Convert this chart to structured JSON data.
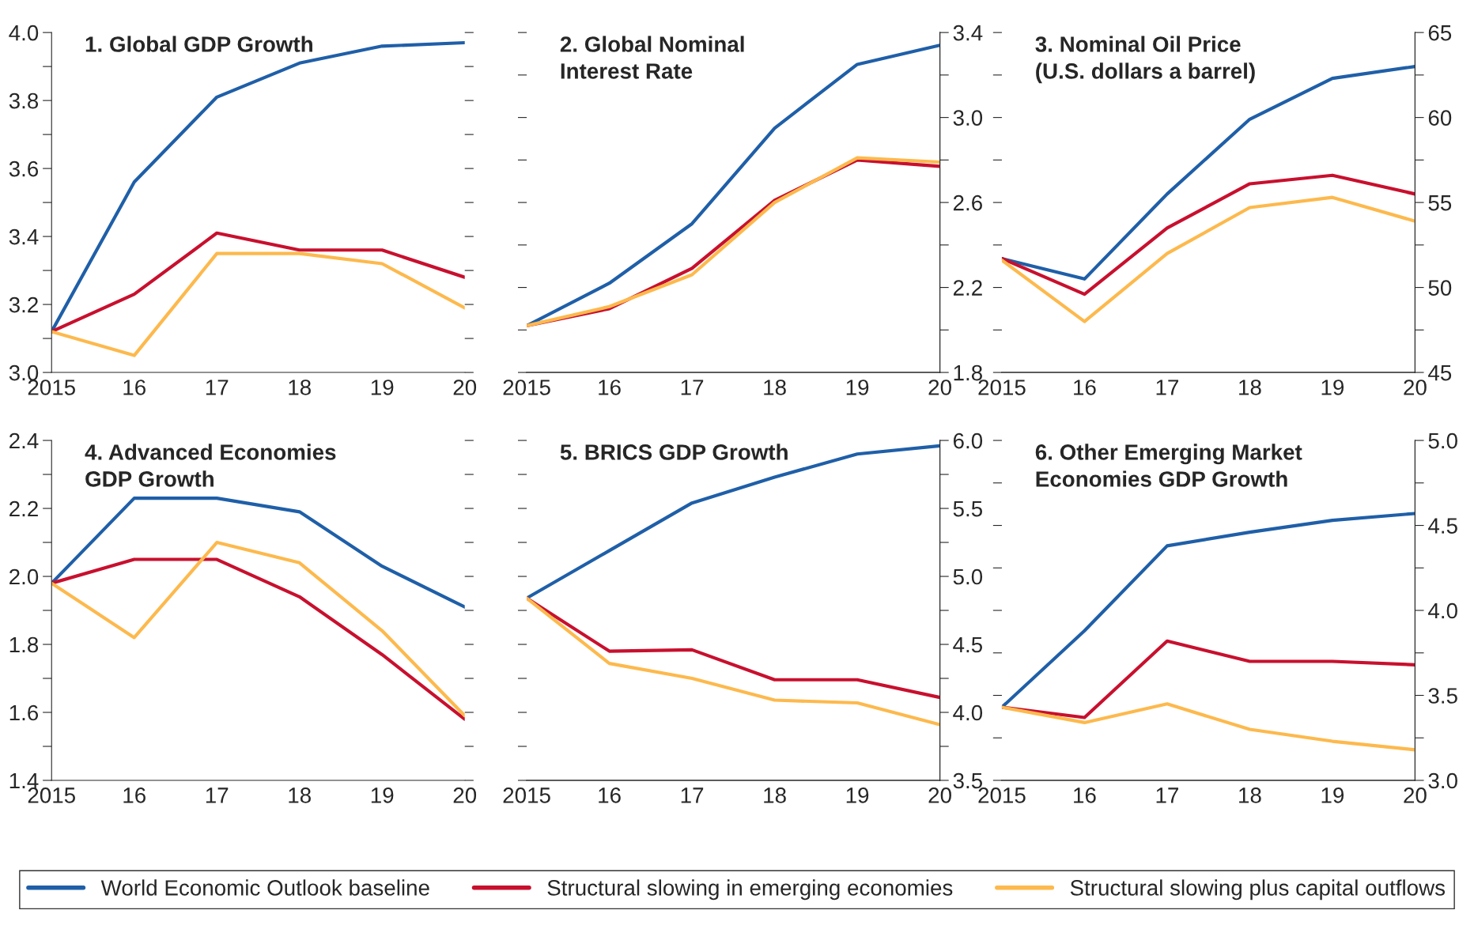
{
  "chart_data": [
    {
      "type": "line",
      "title": "1. Global GDP Growth",
      "categories": [
        "2015",
        "16",
        "17",
        "18",
        "19",
        "20"
      ],
      "ylim": [
        3.0,
        4.0
      ],
      "yticks": [
        {
          "value": 3,
          "label": "3.0"
        },
        {
          "value": 3.1,
          "label": null
        },
        3.2,
        {
          "value": 3.3,
          "label": null
        },
        3.4,
        {
          "value": 3.5,
          "label": null
        },
        3.6,
        {
          "value": 3.7,
          "label": null
        },
        3.8,
        {
          "value": 3.9,
          "label": null
        },
        {
          "value": 4,
          "label": "4.0"
        }
      ],
      "grid": false,
      "legend": "bottom",
      "series": [
        {
          "name": "World Economic Outlook baseline",
          "color": "#1f5fa8",
          "values": [
            3.12,
            3.56,
            3.81,
            3.91,
            3.96,
            3.97
          ]
        },
        {
          "name": "Structural slowing in emerging economies",
          "color": "#c8102e",
          "values": [
            3.12,
            3.23,
            3.41,
            3.36,
            3.36,
            3.28
          ]
        },
        {
          "name": "Structural slowing plus capital outflows",
          "color": "#fdb94d",
          "values": [
            3.12,
            3.05,
            3.35,
            3.35,
            3.32,
            3.19
          ]
        }
      ]
    },
    {
      "type": "line",
      "title": "2. Global Nominal\nInterest Rate",
      "categories": [
        "2015",
        "16",
        "17",
        "18",
        "19",
        "20"
      ],
      "y2lim": [
        1.8,
        3.4
      ],
      "y2ticks": [
        1.8,
        {
          "value": 2.0,
          "label": null
        },
        2.2,
        {
          "value": 2.4,
          "label": null
        },
        2.6,
        {
          "value": 2.8,
          "label": null
        },
        {
          "value": 3,
          "label": "3.0"
        },
        {
          "value": 3.2,
          "label": null
        },
        3.4
      ],
      "grid": false,
      "series": [
        {
          "axis": "y2",
          "color": "#1f5fa8",
          "values": [
            2.02,
            2.22,
            2.5,
            2.95,
            3.25,
            3.34
          ]
        },
        {
          "axis": "y2",
          "color": "#c8102e",
          "values": [
            2.02,
            2.1,
            2.29,
            2.61,
            2.8,
            2.77
          ]
        },
        {
          "axis": "y2",
          "color": "#fdb94d",
          "values": [
            2.02,
            2.11,
            2.26,
            2.6,
            2.81,
            2.79
          ]
        }
      ]
    },
    {
      "type": "line",
      "title": "3. Nominal Oil Price\n(U.S. dollars a barrel)",
      "categories": [
        "2015",
        "16",
        "17",
        "18",
        "19",
        "20"
      ],
      "y2lim": [
        45,
        65
      ],
      "y2ticks": [
        45,
        {
          "value": 47.5,
          "label": null
        },
        50,
        {
          "value": 52.5,
          "label": null
        },
        55,
        {
          "value": 57.5,
          "label": null
        },
        60,
        {
          "value": 62.5,
          "label": null
        },
        65
      ],
      "grid": false,
      "series": [
        {
          "axis": "y2",
          "color": "#1f5fa8",
          "values": [
            51.7,
            50.5,
            55.5,
            59.9,
            62.3,
            63.0
          ]
        },
        {
          "axis": "y2",
          "color": "#c8102e",
          "values": [
            51.7,
            49.6,
            53.5,
            56.1,
            56.6,
            55.5
          ]
        },
        {
          "axis": "y2",
          "color": "#fdb94d",
          "values": [
            51.6,
            48.0,
            52.0,
            54.7,
            55.3,
            53.9
          ]
        }
      ]
    },
    {
      "type": "line",
      "title": "4. Advanced Economies\nGDP Growth",
      "categories": [
        "2015",
        "16",
        "17",
        "18",
        "19",
        "20"
      ],
      "ylim": [
        1.4,
        2.4
      ],
      "yticks": [
        1.4,
        {
          "value": 1.5,
          "label": null
        },
        1.6,
        {
          "value": 1.7,
          "label": null
        },
        1.8,
        {
          "value": 1.9,
          "label": null
        },
        {
          "value": 2,
          "label": "2.0"
        },
        {
          "value": 2.1,
          "label": null
        },
        2.2,
        {
          "value": 2.3,
          "label": null
        },
        2.4
      ],
      "grid": false,
      "series": [
        {
          "color": "#1f5fa8",
          "values": [
            1.98,
            2.23,
            2.23,
            2.19,
            2.03,
            1.91
          ]
        },
        {
          "color": "#c8102e",
          "values": [
            1.98,
            2.05,
            2.05,
            1.94,
            1.77,
            1.58
          ]
        },
        {
          "color": "#fdb94d",
          "values": [
            1.98,
            1.82,
            2.1,
            2.04,
            1.84,
            1.59
          ]
        }
      ]
    },
    {
      "type": "line",
      "title": "5. BRICS GDP Growth",
      "categories": [
        "2015",
        "16",
        "17",
        "18",
        "19",
        "20"
      ],
      "y2lim": [
        3.5,
        6.0
      ],
      "y2ticks": [
        3.5,
        {
          "value": 3.75,
          "label": null
        },
        {
          "value": 4,
          "label": "4.0"
        },
        {
          "value": 4.25,
          "label": null
        },
        4.5,
        {
          "value": 4.75,
          "label": null
        },
        {
          "value": 5,
          "label": "5.0"
        },
        {
          "value": 5.25,
          "label": null
        },
        5.5,
        {
          "value": 5.75,
          "label": null
        },
        {
          "value": 6,
          "label": "6.0"
        }
      ],
      "grid": false,
      "series": [
        {
          "axis": "y2",
          "color": "#1f5fa8",
          "values": [
            4.84,
            5.19,
            5.54,
            5.73,
            5.9,
            5.96
          ]
        },
        {
          "axis": "y2",
          "color": "#c8102e",
          "values": [
            4.84,
            4.45,
            4.46,
            4.24,
            4.24,
            4.11
          ]
        },
        {
          "axis": "y2",
          "color": "#fdb94d",
          "values": [
            4.84,
            4.36,
            4.25,
            4.09,
            4.07,
            3.91
          ]
        }
      ]
    },
    {
      "type": "line",
      "title": "6. Other Emerging Market\nEconomies GDP Growth",
      "categories": [
        "2015",
        "16",
        "17",
        "18",
        "19",
        "20"
      ],
      "y2lim": [
        3.0,
        5.0
      ],
      "y2ticks": [
        {
          "value": 3,
          "label": "3.0"
        },
        {
          "value": 3.25,
          "label": null
        },
        3.5,
        {
          "value": 3.75,
          "label": null
        },
        {
          "value": 4,
          "label": "4.0"
        },
        {
          "value": 4.25,
          "label": null
        },
        4.5,
        {
          "value": 4.75,
          "label": null
        },
        {
          "value": 5,
          "label": "5.0"
        }
      ],
      "grid": false,
      "series": [
        {
          "axis": "y2",
          "color": "#1f5fa8",
          "values": [
            3.43,
            3.88,
            4.38,
            4.46,
            4.53,
            4.57
          ]
        },
        {
          "axis": "y2",
          "color": "#c8102e",
          "values": [
            3.43,
            3.37,
            3.82,
            3.7,
            3.7,
            3.68
          ]
        },
        {
          "axis": "y2",
          "color": "#fdb94d",
          "values": [
            3.43,
            3.34,
            3.45,
            3.3,
            3.23,
            3.18
          ]
        }
      ]
    }
  ]
}
